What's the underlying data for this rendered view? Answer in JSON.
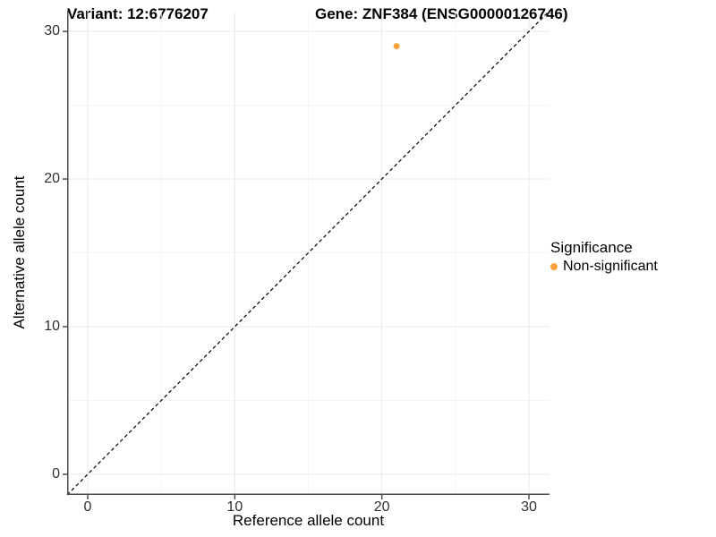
{
  "titles": {
    "variant": "Variant: 12:6776207",
    "gene": "Gene: ZNF384 (ENSG00000126746)"
  },
  "axes": {
    "x": {
      "label": "Reference allele count"
    },
    "y": {
      "label": "Alternative allele count"
    }
  },
  "legend": {
    "title": "Significance",
    "items": [
      {
        "label": "Non-significant",
        "color": "#F9A23C",
        "marker": "circle"
      }
    ]
  },
  "colors": {
    "point_non_significant": "#F9A23C",
    "gridline_major": "#E9E9E9",
    "gridline_minor": "#F4F4F4",
    "axis_line": "#4D4D4D",
    "tick_mark": "#4D4D4D",
    "identity_line": "#000000",
    "background": "#FFFFFF"
  },
  "chart_data": {
    "type": "scatter",
    "title": "Variant: 12:6776207 | Gene: ZNF384 (ENSG00000126746)",
    "xlabel": "Reference allele count",
    "ylabel": "Alternative allele count",
    "xlim": [
      -1.4,
      31.4
    ],
    "ylim": [
      -1.4,
      31.4
    ],
    "x_ticks": [
      0,
      10,
      20,
      30
    ],
    "y_ticks": [
      0,
      10,
      20,
      30
    ],
    "x_minor_ticks": [
      5,
      15,
      25
    ],
    "y_minor_ticks": [
      5,
      15,
      25
    ],
    "grid": true,
    "legend_position": "right",
    "reference_line": {
      "kind": "identity",
      "equation": "y = x",
      "style": "dashed"
    },
    "series": [
      {
        "name": "Non-significant",
        "points": [
          {
            "x": 21,
            "y": 29
          }
        ]
      }
    ]
  }
}
